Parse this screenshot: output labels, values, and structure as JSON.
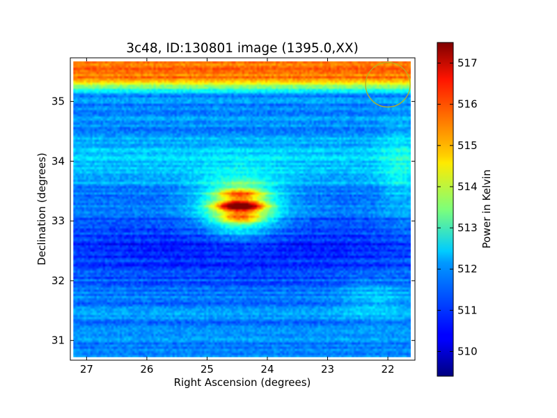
{
  "chart_data": {
    "type": "heatmap",
    "title": "3c48, ID:130801 image (1395.0,XX)",
    "xlabel": "Right Ascension (degrees)",
    "ylabel": "Declination (degrees)",
    "x_axis": {
      "range": [
        27.27,
        21.55
      ],
      "inverted": true,
      "ticks": [
        27,
        26,
        25,
        24,
        23,
        22
      ]
    },
    "y_axis": {
      "range": [
        30.67,
        35.73
      ],
      "ticks": [
        31,
        32,
        33,
        34,
        35
      ]
    },
    "image_extent": {
      "x": [
        27.22,
        21.62
      ],
      "y": [
        30.72,
        35.67
      ]
    },
    "colormap": "jet",
    "colorbar": {
      "label": "Power in Kelvin",
      "range": [
        509.4,
        517.5
      ],
      "ticks": [
        510,
        511,
        512,
        513,
        514,
        515,
        516,
        517
      ]
    },
    "features": {
      "background_level": 511.5,
      "source": {
        "ra": 24.45,
        "dec": 33.25,
        "peak": 517.3,
        "label": "bright compact source"
      },
      "top_band": {
        "dec_from": 35.1,
        "dec_to": 35.67,
        "level": 515.5
      },
      "low_band": {
        "dec_from": 31.9,
        "dec_to": 33.1,
        "level": 510.3
      }
    },
    "annotations": [
      {
        "type": "circle",
        "ra": 22.0,
        "dec": 35.28,
        "radius_deg": 0.37,
        "color": "#b8b020"
      }
    ],
    "grid": false
  }
}
